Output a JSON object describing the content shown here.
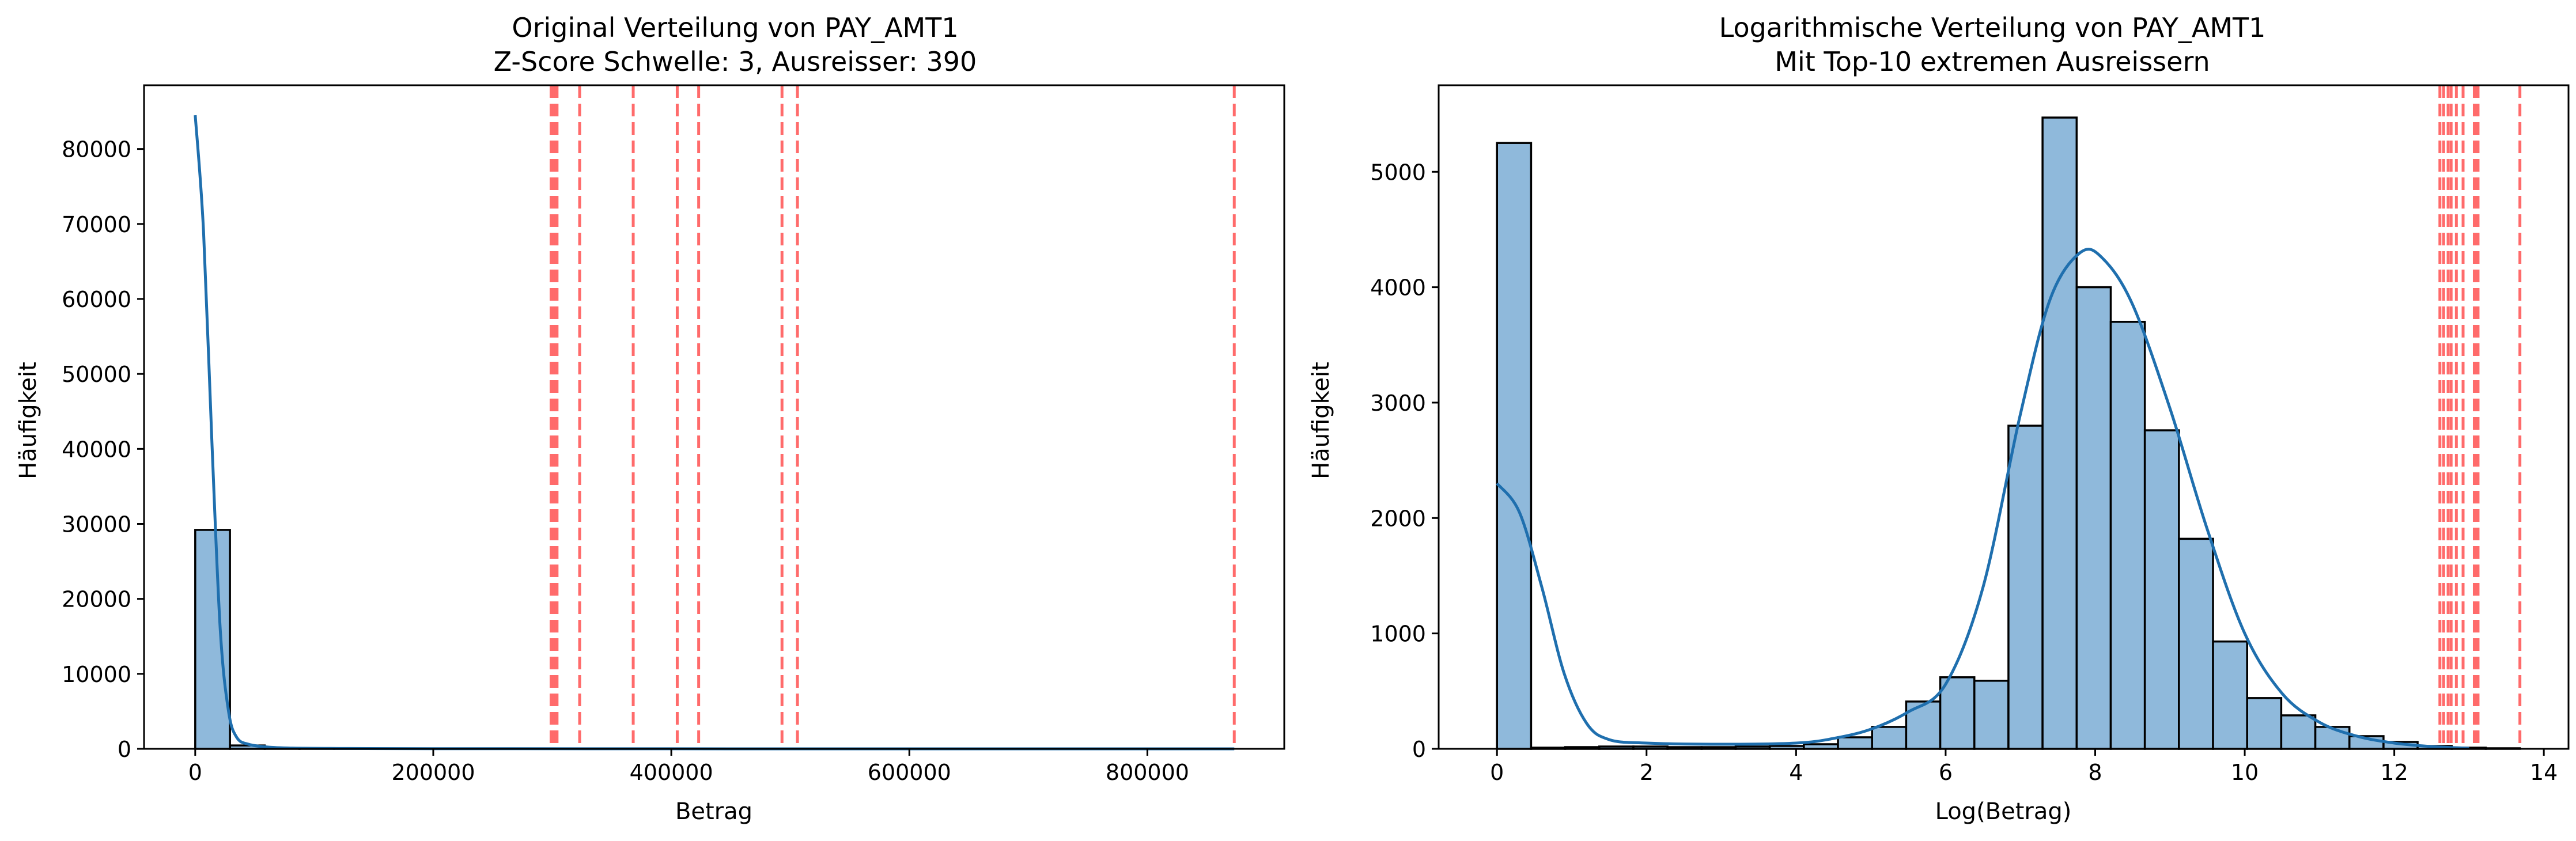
{
  "colors": {
    "bar_fill": "#8fb9db",
    "bar_edge": "#000000",
    "kde_line": "#1f6fae",
    "outlier_line": "#ff6b6b"
  },
  "chart_data": [
    {
      "type": "histogram",
      "title_line1": "Original Verteilung von PAY_AMT1",
      "title_line2": "Z-Score Schwelle: 3, Ausreisser: 390",
      "xlabel": "Betrag",
      "ylabel": "Häufigkeit",
      "xlim": [
        -43000,
        915000
      ],
      "ylim": [
        0,
        88500
      ],
      "xticks": [
        0,
        200000,
        400000,
        600000,
        800000
      ],
      "xtick_labels": [
        "0",
        "200000",
        "400000",
        "600000",
        "800000"
      ],
      "yticks": [
        0,
        10000,
        20000,
        30000,
        40000,
        50000,
        60000,
        70000,
        80000
      ],
      "ytick_labels": [
        "0",
        "10000",
        "20000",
        "30000",
        "40000",
        "50000",
        "60000",
        "70000",
        "80000"
      ],
      "grid": false,
      "bins": [
        {
          "x0": 0,
          "x1": 29200,
          "count": 29200
        },
        {
          "x0": 29200,
          "x1": 58400,
          "count": 450
        },
        {
          "x0": 58400,
          "x1": 87600,
          "count": 80
        },
        {
          "x0": 87600,
          "x1": 116800,
          "count": 30
        },
        {
          "x0": 116800,
          "x1": 146000,
          "count": 15
        },
        {
          "x0": 146000,
          "x1": 175200,
          "count": 10
        },
        {
          "x0": 175200,
          "x1": 204400,
          "count": 5
        }
      ],
      "kde": {
        "x": [
          0,
          7000,
          14000,
          21000,
          28000,
          35000,
          45000,
          60000,
          80000,
          120000,
          200000,
          400000,
          873000
        ],
        "y": [
          84500,
          69000,
          41000,
          16000,
          5000,
          1500,
          600,
          250,
          100,
          50,
          20,
          5,
          0
        ]
      },
      "outlier_lines_x": [
        299000,
        300000,
        301000,
        302000,
        303000,
        304000,
        323000,
        368000,
        405000,
        423000,
        493000,
        506000,
        873000
      ]
    },
    {
      "type": "histogram",
      "title_line1": "Logarithmische Verteilung von PAY_AMT1",
      "title_line2": "Mit Top-10 extremen Ausreissern",
      "xlabel": "Log(Betrag)",
      "ylabel": "Häufigkeit",
      "xlim": [
        -0.78,
        14.33
      ],
      "ylim": [
        0,
        5750
      ],
      "xticks": [
        0,
        2,
        4,
        6,
        8,
        10,
        12,
        14
      ],
      "xtick_labels": [
        "0",
        "2",
        "4",
        "6",
        "8",
        "10",
        "12",
        "14"
      ],
      "yticks": [
        0,
        1000,
        2000,
        3000,
        4000,
        5000
      ],
      "ytick_labels": [
        "0",
        "1000",
        "2000",
        "3000",
        "4000",
        "5000"
      ],
      "grid": false,
      "bin_width": 0.456,
      "bin_counts": [
        5250,
        10,
        15,
        20,
        20,
        15,
        15,
        20,
        25,
        40,
        100,
        190,
        410,
        620,
        590,
        2800,
        5470,
        4000,
        3700,
        2760,
        1820,
        930,
        440,
        290,
        190,
        110,
        60,
        25,
        10,
        5
      ],
      "kde": {
        "x": [
          0,
          0.3,
          0.6,
          0.9,
          1.2,
          1.5,
          2,
          3,
          4,
          4.5,
          5,
          5.5,
          6,
          6.5,
          7,
          7.4,
          7.8,
          8.1,
          8.5,
          9,
          9.5,
          10,
          10.5,
          11,
          11.5,
          12,
          12.5,
          13
        ],
        "y": [
          2300,
          2050,
          1400,
          650,
          220,
          80,
          50,
          40,
          50,
          90,
          170,
          320,
          560,
          1400,
          2900,
          3900,
          4300,
          4250,
          3850,
          2950,
          1900,
          1000,
          480,
          230,
          110,
          50,
          20,
          5
        ]
      },
      "outlier_lines_x": [
        12.61,
        12.66,
        12.72,
        12.76,
        12.83,
        12.92,
        13.07,
        13.09,
        13.12,
        13.68
      ]
    }
  ]
}
